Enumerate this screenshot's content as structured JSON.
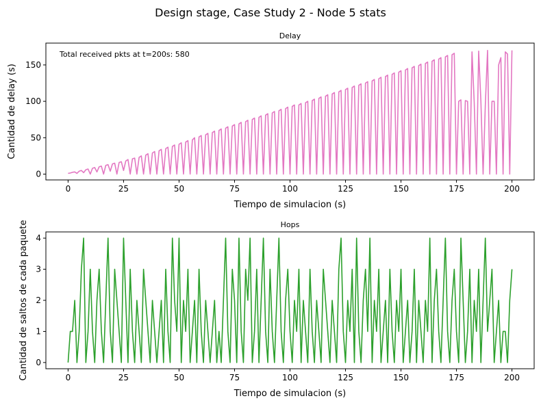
{
  "figure_title": "Design stage, Case Study 2 - Node 5 stats",
  "chart_data": [
    {
      "type": "line",
      "title": "Delay",
      "xlabel": "Tiempo de simulacion (s)",
      "ylabel": "Cantidad de delay (s)",
      "annotation": "Total received pkts at t=200s: 580",
      "xlim": [
        -10,
        210
      ],
      "ylim": [
        -8,
        180
      ],
      "xticks": [
        0,
        25,
        50,
        75,
        100,
        125,
        150,
        175,
        200
      ],
      "yticks": [
        0,
        50,
        100,
        150
      ],
      "color": "#e377c2",
      "grid": false,
      "series": [
        {
          "x": [
            0,
            1,
            2,
            3,
            4,
            5,
            6,
            7,
            8,
            9,
            10,
            11,
            12,
            13,
            14,
            15,
            16,
            17,
            18,
            19,
            20,
            21,
            22,
            23,
            24,
            25,
            26,
            27,
            28,
            29,
            30,
            31,
            32,
            33,
            34,
            35,
            36,
            37,
            38,
            39,
            40,
            41,
            42,
            43,
            44,
            45,
            46,
            47,
            48,
            49,
            50,
            51,
            52,
            53,
            54,
            55,
            56,
            57,
            58,
            59,
            60,
            61,
            62,
            63,
            64,
            65,
            66,
            67,
            68,
            69,
            70,
            71,
            72,
            73,
            74,
            75,
            76,
            77,
            78,
            79,
            80,
            81,
            82,
            83,
            84,
            85,
            86,
            87,
            88,
            89,
            90,
            91,
            92,
            93,
            94,
            95,
            96,
            97,
            98,
            99,
            100,
            101,
            102,
            103,
            104,
            105,
            106,
            107,
            108,
            109,
            110,
            111,
            112,
            113,
            114,
            115,
            116,
            117,
            118,
            119,
            120,
            121,
            122,
            123,
            124,
            125,
            126,
            127,
            128,
            129,
            130,
            131,
            132,
            133,
            134,
            135,
            136,
            137,
            138,
            139,
            140,
            141,
            142,
            143,
            144,
            145,
            146,
            147,
            148,
            149,
            150,
            151,
            152,
            153,
            154,
            155,
            156,
            157,
            158,
            159,
            160,
            161,
            162,
            163,
            164,
            165,
            166,
            167,
            168,
            169,
            170,
            171,
            172,
            173,
            174,
            175,
            176,
            177,
            178,
            179,
            180,
            181,
            182,
            183,
            184,
            185,
            186,
            187,
            188,
            189,
            190,
            191,
            192,
            193,
            194,
            195,
            196,
            197,
            198,
            199,
            200
          ],
          "y": [
            1,
            1.5,
            2.5,
            3,
            1,
            4,
            5,
            2,
            6,
            7,
            0,
            8,
            9,
            3,
            10,
            11,
            0,
            12,
            13,
            4,
            14,
            15,
            0,
            16,
            17,
            5,
            18,
            20,
            0,
            21,
            22,
            0,
            23,
            25,
            0,
            26,
            28,
            0,
            29,
            31,
            0,
            32,
            34,
            0,
            35,
            37,
            0,
            38,
            40,
            0,
            41,
            43,
            0,
            44,
            46,
            0,
            47,
            50,
            0,
            51,
            53,
            0,
            54,
            56,
            0,
            57,
            59,
            0,
            60,
            62,
            0,
            63,
            65,
            0,
            66,
            68,
            0,
            69,
            71,
            0,
            72,
            74,
            0,
            75,
            77,
            0,
            78,
            80,
            0,
            81,
            83,
            0,
            84,
            86,
            0,
            87,
            89,
            0,
            90,
            92,
            0,
            93,
            95,
            0,
            95,
            97,
            0,
            98,
            100,
            0,
            101,
            103,
            0,
            104,
            106,
            0,
            107,
            109,
            0,
            110,
            112,
            0,
            113,
            115,
            0,
            116,
            118,
            0,
            119,
            121,
            0,
            122,
            124,
            0,
            125,
            127,
            0,
            128,
            130,
            0,
            131,
            133,
            0,
            134,
            136,
            0,
            137,
            139,
            0,
            140,
            142,
            0,
            143,
            145,
            0,
            146,
            148,
            0,
            149,
            151,
            0,
            152,
            154,
            0,
            155,
            157,
            0,
            158,
            160,
            0,
            161,
            163,
            0,
            164,
            166,
            0,
            100,
            102,
            0,
            101,
            100,
            0,
            168,
            98,
            0,
            169,
            100,
            0,
            95,
            170,
            0,
            100,
            100,
            0,
            150,
            160,
            0,
            168,
            165,
            0,
            170
          ]
        }
      ]
    },
    {
      "type": "line",
      "title": "Hops",
      "xlabel": "Tiempo de simulacion (s)",
      "ylabel": "Cantidad de saltos de cada paquete",
      "xlim": [
        -10,
        210
      ],
      "ylim": [
        -0.2,
        4.2
      ],
      "xticks": [
        0,
        25,
        50,
        75,
        100,
        125,
        150,
        175,
        200
      ],
      "yticks": [
        0,
        1,
        2,
        3,
        4
      ],
      "color": "#2ca02c",
      "grid": false,
      "series": [
        {
          "x": [
            0,
            1,
            2,
            3,
            4,
            5,
            6,
            7,
            8,
            9,
            10,
            11,
            12,
            13,
            14,
            15,
            16,
            17,
            18,
            19,
            20,
            21,
            22,
            23,
            24,
            25,
            26,
            27,
            28,
            29,
            30,
            31,
            32,
            33,
            34,
            35,
            36,
            37,
            38,
            39,
            40,
            41,
            42,
            43,
            44,
            45,
            46,
            47,
            48,
            49,
            50,
            51,
            52,
            53,
            54,
            55,
            56,
            57,
            58,
            59,
            60,
            61,
            62,
            63,
            64,
            65,
            66,
            67,
            68,
            69,
            70,
            71,
            72,
            73,
            74,
            75,
            76,
            77,
            78,
            79,
            80,
            81,
            82,
            83,
            84,
            85,
            86,
            87,
            88,
            89,
            90,
            91,
            92,
            93,
            94,
            95,
            96,
            97,
            98,
            99,
            100,
            101,
            102,
            103,
            104,
            105,
            106,
            107,
            108,
            109,
            110,
            111,
            112,
            113,
            114,
            115,
            116,
            117,
            118,
            119,
            120,
            121,
            122,
            123,
            124,
            125,
            126,
            127,
            128,
            129,
            130,
            131,
            132,
            133,
            134,
            135,
            136,
            137,
            138,
            139,
            140,
            141,
            142,
            143,
            144,
            145,
            146,
            147,
            148,
            149,
            150,
            151,
            152,
            153,
            154,
            155,
            156,
            157,
            158,
            159,
            160,
            161,
            162,
            163,
            164,
            165,
            166,
            167,
            168,
            169,
            170,
            171,
            172,
            173,
            174,
            175,
            176,
            177,
            178,
            179,
            180,
            181,
            182,
            183,
            184,
            185,
            186,
            187,
            188,
            189,
            190,
            191,
            192,
            193,
            194,
            195,
            196,
            197,
            198,
            199,
            200
          ],
          "y": [
            0,
            1,
            1,
            2,
            0,
            1,
            3,
            4,
            0,
            1,
            3,
            1,
            0,
            2,
            3,
            1,
            0,
            2,
            4,
            1,
            0,
            3,
            2,
            1,
            0,
            4,
            2,
            0,
            3,
            1,
            0,
            2,
            1,
            0,
            3,
            2,
            1,
            0,
            2,
            1,
            0,
            1,
            2,
            0,
            3,
            1,
            0,
            4,
            2,
            1,
            4,
            0,
            2,
            1,
            3,
            0,
            1,
            2,
            0,
            3,
            1,
            0,
            2,
            1,
            0,
            1,
            2,
            0,
            1,
            0,
            2,
            4,
            1,
            0,
            3,
            2,
            0,
            4,
            1,
            0,
            3,
            2,
            4,
            0,
            1,
            3,
            0,
            2,
            4,
            1,
            0,
            3,
            1,
            0,
            2,
            4,
            1,
            0,
            2,
            3,
            1,
            0,
            2,
            1,
            3,
            0,
            2,
            1,
            0,
            3,
            1,
            0,
            2,
            1,
            0,
            3,
            2,
            1,
            0,
            2,
            1,
            0,
            3,
            4,
            1,
            0,
            2,
            1,
            3,
            0,
            4,
            1,
            0,
            2,
            3,
            1,
            4,
            0,
            2,
            1,
            3,
            0,
            1,
            2,
            0,
            3,
            1,
            0,
            2,
            1,
            3,
            0,
            1,
            2,
            0,
            1,
            3,
            0,
            2,
            1,
            0,
            2,
            1,
            4,
            0,
            2,
            3,
            1,
            0,
            2,
            4,
            1,
            0,
            2,
            3,
            1,
            0,
            4,
            2,
            0,
            1,
            3,
            0,
            2,
            1,
            3,
            0,
            2,
            4,
            1,
            2,
            3,
            0,
            1,
            2,
            0,
            1,
            1,
            0,
            2,
            3
          ]
        }
      ]
    }
  ]
}
